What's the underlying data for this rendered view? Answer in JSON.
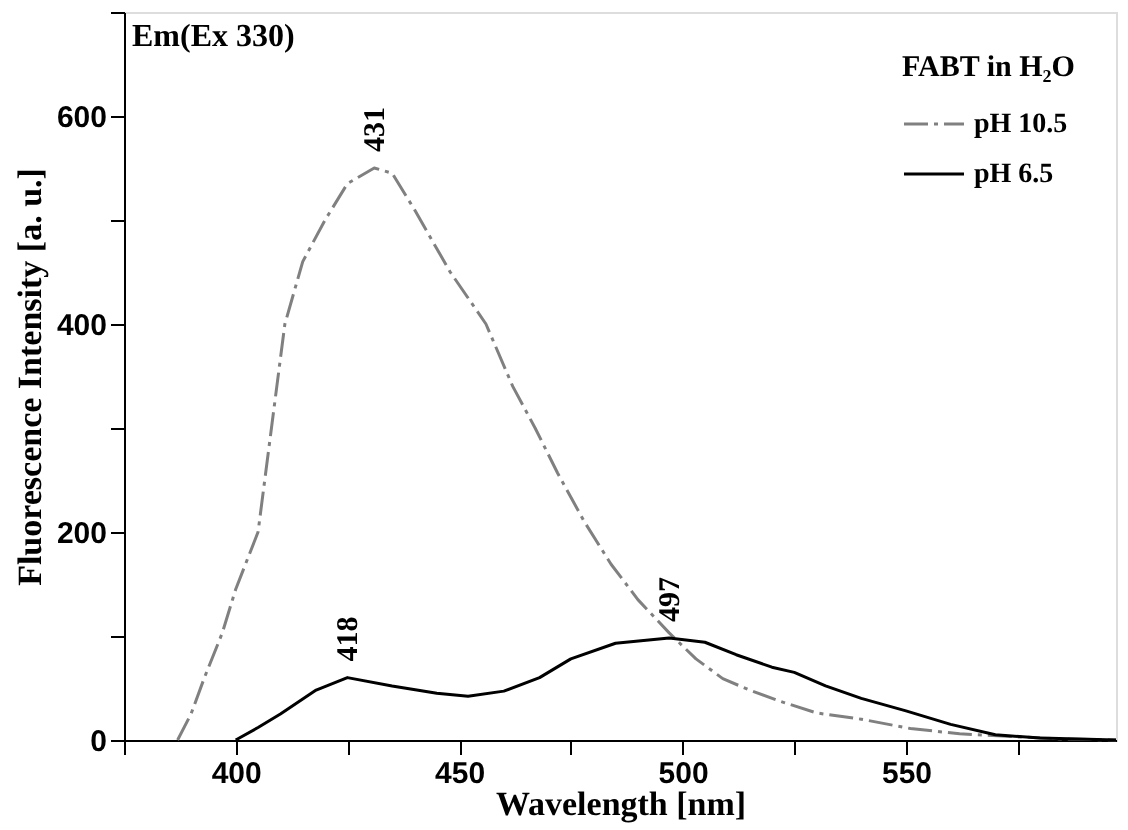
{
  "chart_data": {
    "type": "line",
    "xlabel": "Wavelength [nm]",
    "ylabel": "Fluorescence Intensity [a. u.]",
    "legend_title": "FABT in H₂O",
    "series": [
      {
        "name": "pH 10.5",
        "color": "#808080",
        "line_style": "dashed",
        "x": [
          387,
          390,
          393,
          397,
          400,
          405,
          408,
          411,
          415,
          420,
          425,
          431,
          435,
          440,
          448,
          456,
          462,
          467,
          472,
          478,
          484,
          490,
          497,
          503,
          509,
          515,
          522,
          530,
          540,
          551,
          562,
          575,
          585,
          597
        ],
        "values": [
          0,
          25,
          60,
          103,
          145,
          200,
          300,
          400,
          460,
          500,
          535,
          550,
          545,
          510,
          450,
          400,
          340,
          300,
          257,
          210,
          169,
          135,
          103,
          78,
          59,
          48,
          37,
          26,
          20,
          11,
          6,
          3,
          1,
          0
        ]
      },
      {
        "name": "pH 6.5",
        "color": "#000000",
        "line_style": "solid",
        "x": [
          400,
          405,
          410,
          418,
          425,
          435,
          445,
          452,
          460,
          468,
          475,
          485,
          497,
          505,
          512,
          520,
          525,
          532,
          540,
          550,
          560,
          570,
          580,
          597
        ],
        "values": [
          0,
          12,
          25,
          48,
          60,
          52,
          45,
          42,
          47,
          60,
          78,
          93,
          98,
          94,
          82,
          70,
          65,
          52,
          40,
          28,
          15,
          5,
          2,
          0
        ]
      }
    ],
    "annotations": [
      "Em(Ex 330)",
      {
        "text": "431",
        "x": 431,
        "y": 550
      },
      {
        "text": "418",
        "x": 425,
        "y": 60
      },
      {
        "text": "497",
        "x": 497,
        "y": 98
      }
    ],
    "xlim": [
      375,
      597
    ],
    "ylim": [
      0,
      700
    ],
    "xticks": [
      {
        "value": 375,
        "label": null
      },
      400,
      {
        "value": 425,
        "label": null
      },
      450,
      {
        "value": 475,
        "label": null
      },
      500,
      {
        "value": 525,
        "label": null
      },
      550,
      {
        "value": 575,
        "label": null
      }
    ],
    "yticks": [
      0,
      {
        "value": 100,
        "label": null
      },
      200,
      {
        "value": 300,
        "label": null
      },
      400,
      {
        "value": 500,
        "label": null
      },
      600,
      {
        "value": 700,
        "label": null
      }
    ],
    "grid": false,
    "legend": "top right",
    "marker": "none"
  }
}
